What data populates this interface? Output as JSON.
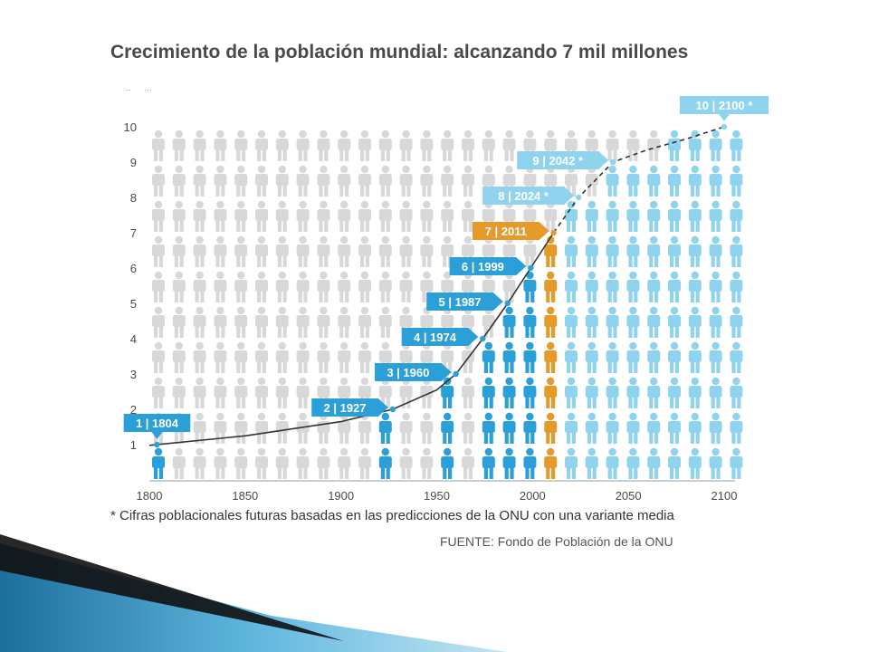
{
  "chart_data": {
    "type": "scatter",
    "title": "Crecimiento de la población mundial: alcanzando 7 mil millones",
    "ylabel": "Mil millones",
    "xlabel": "",
    "xlim": [
      1800,
      2100
    ],
    "ylim": [
      0,
      10
    ],
    "x_ticks": [
      "1800",
      "1850",
      "1900",
      "1950",
      "2000",
      "2050",
      "2100"
    ],
    "y_ticks": [
      "1",
      "2",
      "3",
      "4",
      "5",
      "6",
      "7",
      "8",
      "9",
      "10"
    ],
    "milestones": [
      {
        "label": "1 | 1804",
        "population": 1,
        "year": 1804,
        "projected": false,
        "highlight": false
      },
      {
        "label": "2 | 1927",
        "population": 2,
        "year": 1927,
        "projected": false,
        "highlight": false
      },
      {
        "label": "3 | 1960",
        "population": 3,
        "year": 1960,
        "projected": false,
        "highlight": false
      },
      {
        "label": "4 | 1974",
        "population": 4,
        "year": 1974,
        "projected": false,
        "highlight": false
      },
      {
        "label": "5 | 1987",
        "population": 5,
        "year": 1987,
        "projected": false,
        "highlight": false
      },
      {
        "label": "6 | 1999",
        "population": 6,
        "year": 1999,
        "projected": false,
        "highlight": false
      },
      {
        "label": "7 | 2011",
        "population": 7,
        "year": 2011,
        "projected": false,
        "highlight": true
      },
      {
        "label": "8 | 2024 *",
        "population": 8,
        "year": 2024,
        "projected": true,
        "highlight": false
      },
      {
        "label": "9 | 2042 *",
        "population": 9,
        "year": 2042,
        "projected": true,
        "highlight": false
      },
      {
        "label": "10 | 2100 *",
        "population": 10,
        "year": 2100,
        "projected": true,
        "highlight": false
      }
    ],
    "curve_historical": [
      [
        1800,
        0.98
      ],
      [
        1850,
        1.25
      ],
      [
        1900,
        1.65
      ],
      [
        1927,
        2.0
      ],
      [
        1950,
        2.55
      ],
      [
        1960,
        3.0
      ],
      [
        1974,
        4.0
      ],
      [
        1987,
        5.0
      ],
      [
        1999,
        6.0
      ],
      [
        2011,
        7.0
      ]
    ],
    "curve_projected": [
      [
        2011,
        7.0
      ],
      [
        2024,
        8.0
      ],
      [
        2042,
        9.0
      ],
      [
        2060,
        9.35
      ],
      [
        2080,
        9.65
      ],
      [
        2100,
        10.0
      ]
    ],
    "colors": {
      "historical": "#2a9fd8",
      "highlight": "#e59a2a",
      "projected": "#8fd3ee",
      "background_figure": "#d8d8d8",
      "line": "#333333",
      "axis_text": "#4a4a4a"
    },
    "footnote": "* Cifras poblacionales futuras basadas en las predicciones de la ONU con una variante media",
    "source": "FUENTE: Fondo de Población de la ONU"
  }
}
